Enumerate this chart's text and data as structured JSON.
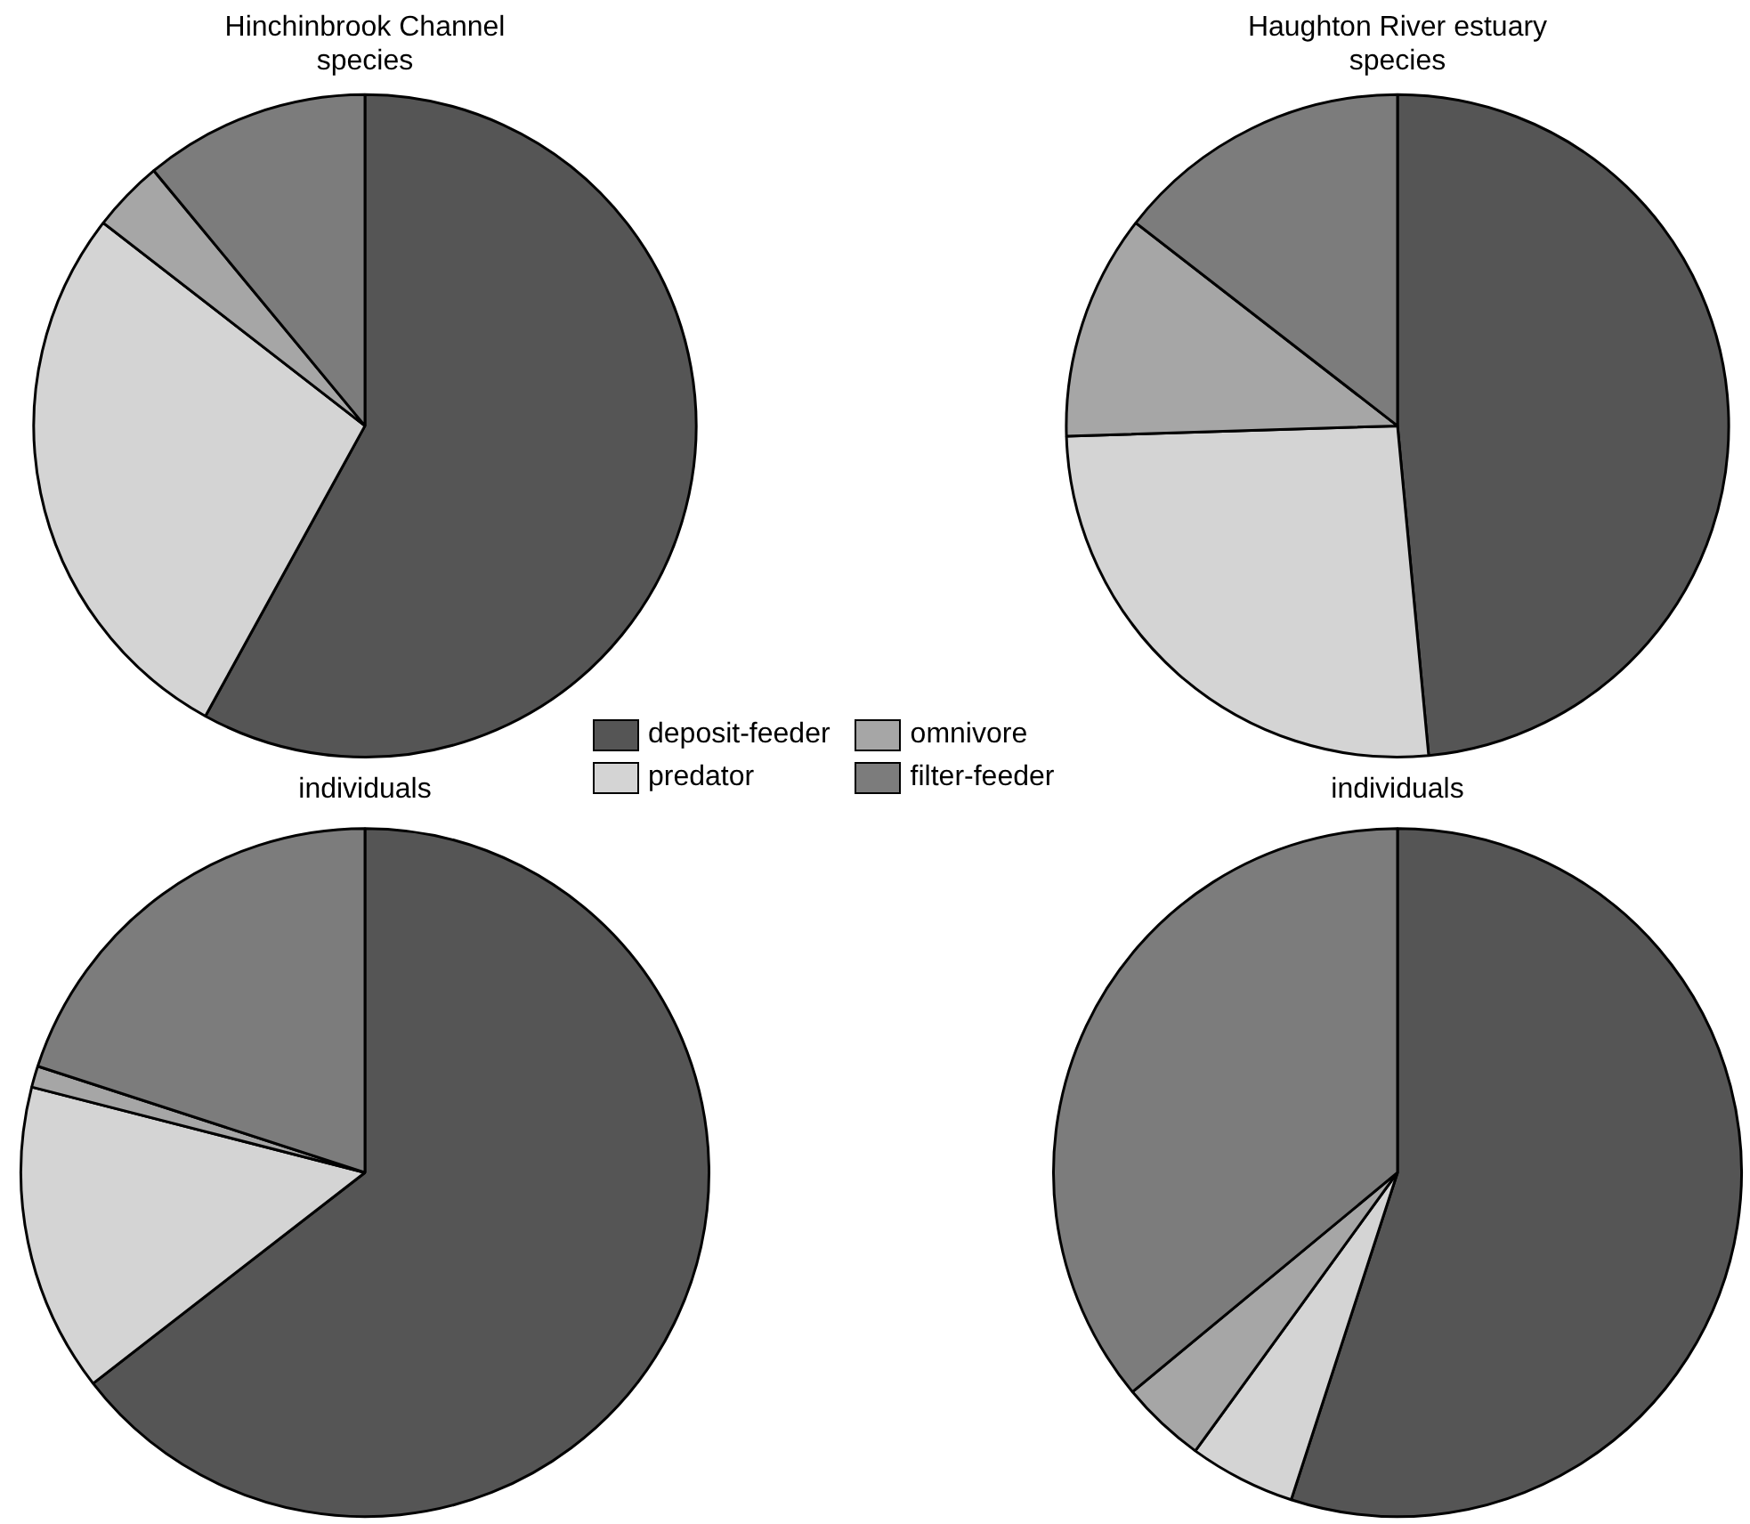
{
  "chart_data": [
    {
      "type": "pie",
      "title": "Hinchinbrook Channel",
      "subtitle": "species",
      "categories": [
        "deposit-feeder",
        "predator",
        "omnivore",
        "filter-feeder"
      ],
      "values": [
        58,
        27.5,
        3.5,
        11
      ],
      "colors": [
        "#555555",
        "#d4d4d4",
        "#a6a6a6",
        "#7c7c7c"
      ],
      "legend": "bottom right"
    },
    {
      "type": "pie",
      "title": "Haughton River estuary",
      "subtitle": "species",
      "categories": [
        null,
        null,
        null,
        null
      ],
      "values": [
        48.5,
        26,
        11,
        14.5
      ],
      "colors": [
        "#555555",
        "#d4d4d4",
        "#a6a6a6",
        "#7c7c7c"
      ]
    },
    {
      "type": "pie",
      "title": "individuals",
      "categories": [
        null,
        null,
        null,
        null
      ],
      "values": [
        64.5,
        14.5,
        1,
        20
      ],
      "colors": [
        "#555555",
        "#d4d4d4",
        "#a6a6a6",
        "#7c7c7c"
      ]
    },
    {
      "type": "pie",
      "title": "individuals",
      "categories": [
        null,
        null,
        null,
        null
      ],
      "values": [
        55,
        5,
        4,
        36
      ],
      "colors": [
        "#555555",
        "#d4d4d4",
        "#a6a6a6",
        "#7c7c7c"
      ]
    }
  ]
}
